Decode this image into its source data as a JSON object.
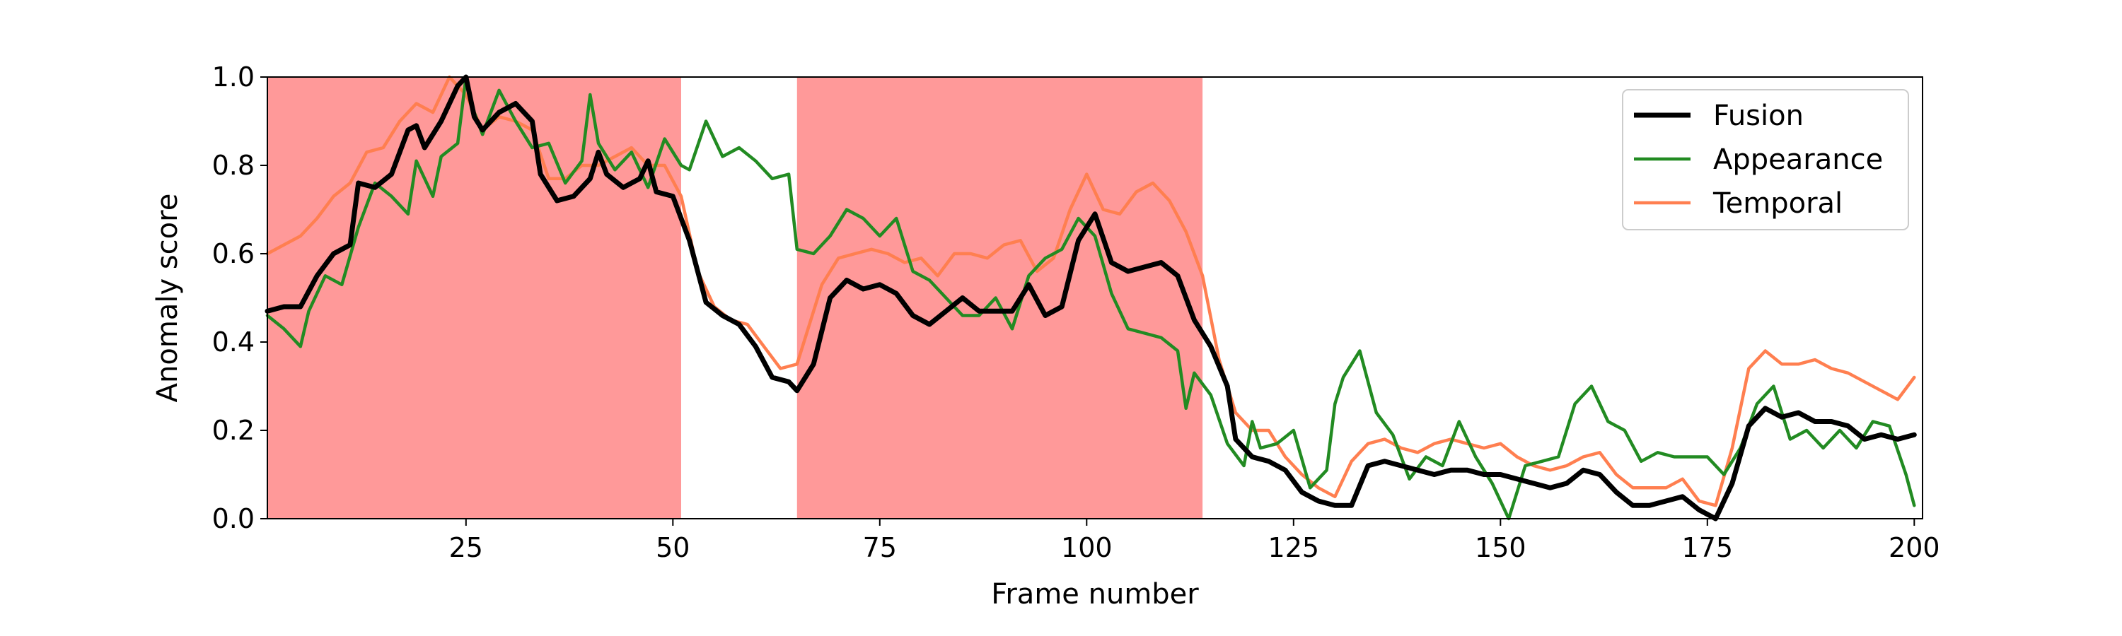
{
  "chart_data": {
    "type": "line",
    "title": "",
    "xlabel": "Frame number",
    "ylabel": "Anomaly score",
    "xlim": [
      1,
      201
    ],
    "ylim": [
      0,
      1
    ],
    "xticks": [
      25,
      50,
      75,
      100,
      125,
      150,
      175,
      200
    ],
    "yticks": [
      "0.0",
      "0.2",
      "0.4",
      "0.6",
      "0.8",
      "1.0"
    ],
    "grid": false,
    "legend": "top-right",
    "highlight_regions": [
      {
        "x0": 1,
        "x1": 51,
        "color": "#ff9999"
      },
      {
        "x0": 65,
        "x1": 114,
        "color": "#ff9999"
      }
    ],
    "series": [
      {
        "name": "Fusion",
        "color": "#000000",
        "points": [
          [
            1,
            0.47
          ],
          [
            3,
            0.48
          ],
          [
            5,
            0.48
          ],
          [
            7,
            0.55
          ],
          [
            9,
            0.6
          ],
          [
            11,
            0.62
          ],
          [
            12,
            0.76
          ],
          [
            14,
            0.75
          ],
          [
            16,
            0.78
          ],
          [
            18,
            0.88
          ],
          [
            19,
            0.89
          ],
          [
            20,
            0.84
          ],
          [
            22,
            0.9
          ],
          [
            24,
            0.98
          ],
          [
            25,
            1.0
          ],
          [
            26,
            0.91
          ],
          [
            27,
            0.88
          ],
          [
            29,
            0.92
          ],
          [
            31,
            0.94
          ],
          [
            33,
            0.9
          ],
          [
            34,
            0.78
          ],
          [
            36,
            0.72
          ],
          [
            38,
            0.73
          ],
          [
            40,
            0.77
          ],
          [
            41,
            0.83
          ],
          [
            42,
            0.78
          ],
          [
            44,
            0.75
          ],
          [
            46,
            0.77
          ],
          [
            47,
            0.81
          ],
          [
            48,
            0.74
          ],
          [
            50,
            0.73
          ],
          [
            52,
            0.63
          ],
          [
            54,
            0.49
          ],
          [
            56,
            0.46
          ],
          [
            58,
            0.44
          ],
          [
            60,
            0.39
          ],
          [
            62,
            0.32
          ],
          [
            64,
            0.31
          ],
          [
            65,
            0.29
          ],
          [
            67,
            0.35
          ],
          [
            69,
            0.5
          ],
          [
            71,
            0.54
          ],
          [
            73,
            0.52
          ],
          [
            75,
            0.53
          ],
          [
            77,
            0.51
          ],
          [
            79,
            0.46
          ],
          [
            81,
            0.44
          ],
          [
            83,
            0.47
          ],
          [
            85,
            0.5
          ],
          [
            87,
            0.47
          ],
          [
            89,
            0.47
          ],
          [
            91,
            0.47
          ],
          [
            93,
            0.53
          ],
          [
            95,
            0.46
          ],
          [
            97,
            0.48
          ],
          [
            99,
            0.63
          ],
          [
            101,
            0.69
          ],
          [
            103,
            0.58
          ],
          [
            105,
            0.56
          ],
          [
            107,
            0.57
          ],
          [
            109,
            0.58
          ],
          [
            111,
            0.55
          ],
          [
            113,
            0.45
          ],
          [
            115,
            0.39
          ],
          [
            117,
            0.3
          ],
          [
            118,
            0.18
          ],
          [
            120,
            0.14
          ],
          [
            122,
            0.13
          ],
          [
            124,
            0.11
          ],
          [
            126,
            0.06
          ],
          [
            128,
            0.04
          ],
          [
            130,
            0.03
          ],
          [
            132,
            0.03
          ],
          [
            134,
            0.12
          ],
          [
            136,
            0.13
          ],
          [
            138,
            0.12
          ],
          [
            140,
            0.11
          ],
          [
            142,
            0.1
          ],
          [
            144,
            0.11
          ],
          [
            146,
            0.11
          ],
          [
            148,
            0.1
          ],
          [
            150,
            0.1
          ],
          [
            152,
            0.09
          ],
          [
            154,
            0.08
          ],
          [
            156,
            0.07
          ],
          [
            158,
            0.08
          ],
          [
            160,
            0.11
          ],
          [
            162,
            0.1
          ],
          [
            164,
            0.06
          ],
          [
            166,
            0.03
          ],
          [
            168,
            0.03
          ],
          [
            170,
            0.04
          ],
          [
            172,
            0.05
          ],
          [
            174,
            0.02
          ],
          [
            176,
            0.0
          ],
          [
            178,
            0.08
          ],
          [
            180,
            0.21
          ],
          [
            182,
            0.25
          ],
          [
            184,
            0.23
          ],
          [
            186,
            0.24
          ],
          [
            188,
            0.22
          ],
          [
            190,
            0.22
          ],
          [
            192,
            0.21
          ],
          [
            194,
            0.18
          ],
          [
            196,
            0.19
          ],
          [
            198,
            0.18
          ],
          [
            200,
            0.19
          ]
        ]
      },
      {
        "name": "Appearance",
        "color": "#228b22",
        "points": [
          [
            1,
            0.46
          ],
          [
            3,
            0.43
          ],
          [
            5,
            0.39
          ],
          [
            6,
            0.47
          ],
          [
            8,
            0.55
          ],
          [
            10,
            0.53
          ],
          [
            12,
            0.66
          ],
          [
            14,
            0.76
          ],
          [
            16,
            0.73
          ],
          [
            18,
            0.69
          ],
          [
            19,
            0.81
          ],
          [
            21,
            0.73
          ],
          [
            22,
            0.82
          ],
          [
            24,
            0.85
          ],
          [
            25,
            1.0
          ],
          [
            26,
            0.92
          ],
          [
            27,
            0.87
          ],
          [
            29,
            0.97
          ],
          [
            31,
            0.9
          ],
          [
            33,
            0.84
          ],
          [
            35,
            0.85
          ],
          [
            37,
            0.76
          ],
          [
            39,
            0.81
          ],
          [
            40,
            0.96
          ],
          [
            41,
            0.85
          ],
          [
            43,
            0.79
          ],
          [
            45,
            0.83
          ],
          [
            47,
            0.75
          ],
          [
            49,
            0.86
          ],
          [
            51,
            0.8
          ],
          [
            52,
            0.79
          ],
          [
            54,
            0.9
          ],
          [
            56,
            0.82
          ],
          [
            58,
            0.84
          ],
          [
            60,
            0.81
          ],
          [
            62,
            0.77
          ],
          [
            64,
            0.78
          ],
          [
            65,
            0.61
          ],
          [
            67,
            0.6
          ],
          [
            69,
            0.64
          ],
          [
            71,
            0.7
          ],
          [
            73,
            0.68
          ],
          [
            75,
            0.64
          ],
          [
            77,
            0.68
          ],
          [
            79,
            0.56
          ],
          [
            81,
            0.54
          ],
          [
            83,
            0.5
          ],
          [
            85,
            0.46
          ],
          [
            87,
            0.46
          ],
          [
            89,
            0.5
          ],
          [
            91,
            0.43
          ],
          [
            93,
            0.55
          ],
          [
            95,
            0.59
          ],
          [
            97,
            0.61
          ],
          [
            99,
            0.68
          ],
          [
            101,
            0.64
          ],
          [
            103,
            0.51
          ],
          [
            105,
            0.43
          ],
          [
            107,
            0.42
          ],
          [
            109,
            0.41
          ],
          [
            111,
            0.38
          ],
          [
            112,
            0.25
          ],
          [
            113,
            0.33
          ],
          [
            115,
            0.28
          ],
          [
            117,
            0.17
          ],
          [
            119,
            0.12
          ],
          [
            120,
            0.22
          ],
          [
            121,
            0.16
          ],
          [
            123,
            0.17
          ],
          [
            125,
            0.2
          ],
          [
            127,
            0.07
          ],
          [
            129,
            0.11
          ],
          [
            130,
            0.26
          ],
          [
            131,
            0.32
          ],
          [
            133,
            0.38
          ],
          [
            135,
            0.24
          ],
          [
            137,
            0.19
          ],
          [
            139,
            0.09
          ],
          [
            141,
            0.14
          ],
          [
            143,
            0.12
          ],
          [
            145,
            0.22
          ],
          [
            147,
            0.14
          ],
          [
            149,
            0.08
          ],
          [
            151,
            0.0
          ],
          [
            153,
            0.12
          ],
          [
            155,
            0.13
          ],
          [
            157,
            0.14
          ],
          [
            159,
            0.26
          ],
          [
            161,
            0.3
          ],
          [
            163,
            0.22
          ],
          [
            165,
            0.2
          ],
          [
            167,
            0.13
          ],
          [
            169,
            0.15
          ],
          [
            171,
            0.14
          ],
          [
            173,
            0.14
          ],
          [
            175,
            0.14
          ],
          [
            177,
            0.1
          ],
          [
            179,
            0.16
          ],
          [
            181,
            0.26
          ],
          [
            183,
            0.3
          ],
          [
            185,
            0.18
          ],
          [
            187,
            0.2
          ],
          [
            189,
            0.16
          ],
          [
            191,
            0.2
          ],
          [
            193,
            0.16
          ],
          [
            195,
            0.22
          ],
          [
            197,
            0.21
          ],
          [
            199,
            0.1
          ],
          [
            200,
            0.03
          ]
        ]
      },
      {
        "name": "Temporal",
        "color": "#ff7f50",
        "points": [
          [
            1,
            0.6
          ],
          [
            3,
            0.62
          ],
          [
            5,
            0.64
          ],
          [
            7,
            0.68
          ],
          [
            9,
            0.73
          ],
          [
            11,
            0.76
          ],
          [
            13,
            0.83
          ],
          [
            15,
            0.84
          ],
          [
            17,
            0.9
          ],
          [
            19,
            0.94
          ],
          [
            21,
            0.92
          ],
          [
            23,
            1.0
          ],
          [
            25,
            0.96
          ],
          [
            27,
            0.88
          ],
          [
            29,
            0.91
          ],
          [
            31,
            0.9
          ],
          [
            33,
            0.88
          ],
          [
            35,
            0.77
          ],
          [
            37,
            0.77
          ],
          [
            39,
            0.8
          ],
          [
            41,
            0.8
          ],
          [
            43,
            0.82
          ],
          [
            45,
            0.84
          ],
          [
            47,
            0.8
          ],
          [
            49,
            0.8
          ],
          [
            51,
            0.73
          ],
          [
            53,
            0.56
          ],
          [
            55,
            0.48
          ],
          [
            57,
            0.45
          ],
          [
            59,
            0.44
          ],
          [
            61,
            0.39
          ],
          [
            63,
            0.34
          ],
          [
            65,
            0.35
          ],
          [
            66,
            0.41
          ],
          [
            68,
            0.53
          ],
          [
            70,
            0.59
          ],
          [
            72,
            0.6
          ],
          [
            74,
            0.61
          ],
          [
            76,
            0.6
          ],
          [
            78,
            0.58
          ],
          [
            80,
            0.59
          ],
          [
            82,
            0.55
          ],
          [
            84,
            0.6
          ],
          [
            86,
            0.6
          ],
          [
            88,
            0.59
          ],
          [
            90,
            0.62
          ],
          [
            92,
            0.63
          ],
          [
            94,
            0.56
          ],
          [
            96,
            0.59
          ],
          [
            98,
            0.7
          ],
          [
            100,
            0.78
          ],
          [
            102,
            0.7
          ],
          [
            104,
            0.69
          ],
          [
            106,
            0.74
          ],
          [
            108,
            0.76
          ],
          [
            110,
            0.72
          ],
          [
            112,
            0.65
          ],
          [
            114,
            0.55
          ],
          [
            116,
            0.36
          ],
          [
            118,
            0.24
          ],
          [
            120,
            0.2
          ],
          [
            122,
            0.2
          ],
          [
            124,
            0.14
          ],
          [
            126,
            0.1
          ],
          [
            128,
            0.07
          ],
          [
            130,
            0.05
          ],
          [
            132,
            0.13
          ],
          [
            134,
            0.17
          ],
          [
            136,
            0.18
          ],
          [
            138,
            0.16
          ],
          [
            140,
            0.15
          ],
          [
            142,
            0.17
          ],
          [
            144,
            0.18
          ],
          [
            146,
            0.17
          ],
          [
            148,
            0.16
          ],
          [
            150,
            0.17
          ],
          [
            152,
            0.14
          ],
          [
            154,
            0.12
          ],
          [
            156,
            0.11
          ],
          [
            158,
            0.12
          ],
          [
            160,
            0.14
          ],
          [
            162,
            0.15
          ],
          [
            164,
            0.1
          ],
          [
            166,
            0.07
          ],
          [
            168,
            0.07
          ],
          [
            170,
            0.07
          ],
          [
            172,
            0.09
          ],
          [
            174,
            0.04
          ],
          [
            176,
            0.03
          ],
          [
            178,
            0.16
          ],
          [
            180,
            0.34
          ],
          [
            182,
            0.38
          ],
          [
            184,
            0.35
          ],
          [
            186,
            0.35
          ],
          [
            188,
            0.36
          ],
          [
            190,
            0.34
          ],
          [
            192,
            0.33
          ],
          [
            194,
            0.31
          ],
          [
            196,
            0.29
          ],
          [
            198,
            0.27
          ],
          [
            200,
            0.32
          ]
        ]
      }
    ]
  }
}
